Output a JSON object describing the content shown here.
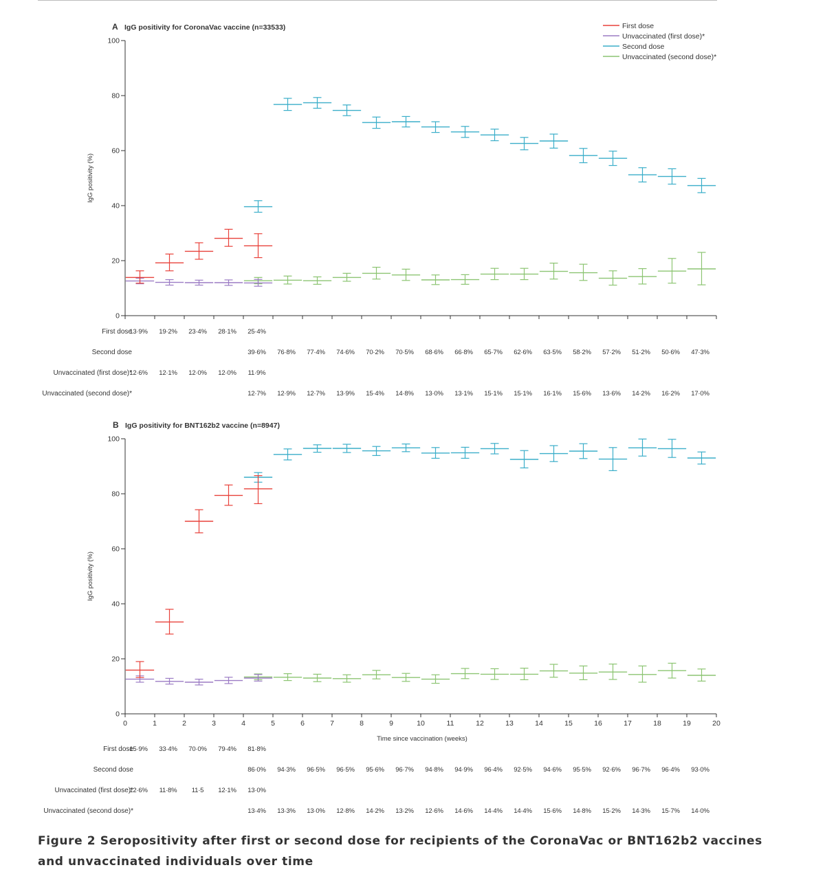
{
  "caption": {
    "line1": "Figure 2 Seropositivity after first or second dose for recipients of the CoronaVac or BNT162b2 vaccines",
    "line2": "and unvaccinated individuals over time"
  },
  "colors": {
    "first_dose": "#e8413a",
    "unvacc_first": "#9b7bc4",
    "second_dose": "#3aaec9",
    "unvacc_second": "#8cc472"
  },
  "legend": {
    "first": "First dose",
    "unvacc_first": "Unvaccinated (first dose)*",
    "second": "Second dose",
    "unvacc_second": "Unvaccinated (second dose)*"
  },
  "chart_data": [
    {
      "type": "scatter",
      "panel": "A",
      "title": "IgG positivity for CoronaVac vaccine (n=33533)",
      "ylabel": "IgG positivity (%)",
      "ylim": [
        0,
        100
      ],
      "yticks": [
        "0",
        "20",
        "40",
        "60",
        "80",
        "100"
      ],
      "xlim": [
        0,
        20
      ],
      "xticks": [],
      "xlabel": "",
      "legend_position": "top-right",
      "table_labels": {
        "first": "First dose",
        "second": "Second dose",
        "unvacc_first": "Unvaccinated (first dose)*",
        "unvacc_second": "Unvaccinated (second dose)*"
      },
      "series": [
        {
          "name": "First dose",
          "key": "first",
          "start": 0,
          "values": [
            13.9,
            19.2,
            23.4,
            28.1,
            25.4
          ],
          "ci": [
            [
              11.8,
              16.3
            ],
            [
              16.3,
              22.4
            ],
            [
              20.5,
              26.5
            ],
            [
              25.2,
              31.4
            ],
            [
              21.1,
              29.8
            ]
          ],
          "labels": [
            "13·9%",
            "19·2%",
            "23·4%",
            "28·1%",
            "25·4%"
          ]
        },
        {
          "name": "Unvaccinated (first dose)*",
          "key": "unvacc_first",
          "start": 0,
          "values": [
            12.6,
            12.1,
            12.0,
            12.0,
            11.9
          ],
          "ci": [
            [
              11.6,
              13.6
            ],
            [
              11.1,
              13.1
            ],
            [
              11.1,
              12.9
            ],
            [
              11.0,
              13.0
            ],
            [
              10.7,
              13.2
            ]
          ],
          "labels": [
            "12·6%",
            "12·1%",
            "12·0%",
            "12·0%",
            "11·9%"
          ]
        },
        {
          "name": "Second dose",
          "key": "second",
          "start": 4,
          "values": [
            39.6,
            76.8,
            77.4,
            74.6,
            70.2,
            70.5,
            68.6,
            66.8,
            65.7,
            62.6,
            63.5,
            58.2,
            57.2,
            51.2,
            50.6,
            47.3
          ],
          "ci": [
            [
              37.6,
              41.8
            ],
            [
              74.6,
              79.0
            ],
            [
              75.4,
              79.3
            ],
            [
              72.7,
              76.6
            ],
            [
              68.1,
              72.2
            ],
            [
              68.6,
              72.4
            ],
            [
              66.6,
              70.5
            ],
            [
              64.8,
              68.8
            ],
            [
              63.6,
              67.8
            ],
            [
              60.3,
              64.8
            ],
            [
              60.9,
              66.0
            ],
            [
              55.6,
              60.8
            ],
            [
              54.6,
              59.8
            ],
            [
              48.6,
              53.8
            ],
            [
              47.8,
              53.4
            ],
            [
              44.7,
              49.9
            ]
          ],
          "labels": [
            "39·6%",
            "76·8%",
            "77·4%",
            "74·6%",
            "70·2%",
            "70·5%",
            "68·6%",
            "66·8%",
            "65·7%",
            "62·6%",
            "63·5%",
            "58·2%",
            "57·2%",
            "51·2%",
            "50·6%",
            "47·3%"
          ]
        },
        {
          "name": "Unvaccinated (second dose)*",
          "key": "unvacc_second",
          "start": 4,
          "values": [
            12.7,
            12.9,
            12.7,
            13.9,
            15.4,
            14.8,
            13.0,
            13.1,
            15.1,
            15.1,
            16.1,
            15.6,
            13.6,
            14.2,
            16.2,
            17.0
          ],
          "ci": [
            [
              11.6,
              13.9
            ],
            [
              11.5,
              14.4
            ],
            [
              11.4,
              14.1
            ],
            [
              12.5,
              15.4
            ],
            [
              13.3,
              17.6
            ],
            [
              12.8,
              16.9
            ],
            [
              11.3,
              14.8
            ],
            [
              11.4,
              14.9
            ],
            [
              13.1,
              17.2
            ],
            [
              13.1,
              17.2
            ],
            [
              13.3,
              19.1
            ],
            [
              12.8,
              18.7
            ],
            [
              11.1,
              16.3
            ],
            [
              11.5,
              17.1
            ],
            [
              11.8,
              20.8
            ],
            [
              11.2,
              23.0
            ]
          ],
          "labels": [
            "12·7%",
            "12·9%",
            "12·7%",
            "13·9%",
            "15·4%",
            "14·8%",
            "13·0%",
            "13·1%",
            "15·1%",
            "15·1%",
            "16·1%",
            "15·6%",
            "13·6%",
            "14·2%",
            "16·2%",
            "17·0%"
          ]
        }
      ]
    },
    {
      "type": "scatter",
      "panel": "B",
      "title": "IgG positivity for BNT162b2 vaccine (n=8947)",
      "ylabel": "IgG positivity (%)",
      "ylim": [
        0,
        100
      ],
      "yticks": [
        "0",
        "20",
        "40",
        "60",
        "80",
        "100"
      ],
      "xlim": [
        0,
        20
      ],
      "xticks": [
        "0",
        "1",
        "2",
        "3",
        "4",
        "5",
        "6",
        "7",
        "8",
        "9",
        "10",
        "11",
        "12",
        "13",
        "14",
        "15",
        "16",
        "17",
        "18",
        "19",
        "20"
      ],
      "xlabel": "Time since vaccination (weeks)",
      "table_labels": {
        "first": "First dose",
        "second": "Second dose",
        "unvacc_first": "Unvaccinated (first dose)*",
        "unvacc_second": "Unvaccinated (second dose)*"
      },
      "series": [
        {
          "name": "First dose",
          "key": "first",
          "start": 0,
          "values": [
            15.9,
            33.4,
            70.0,
            79.4,
            81.8
          ],
          "ci": [
            [
              13.2,
              19.0
            ],
            [
              29.0,
              38.0
            ],
            [
              65.8,
              74.2
            ],
            [
              75.8,
              83.2
            ],
            [
              76.4,
              86.6
            ]
          ],
          "labels": [
            "15·9%",
            "33·4%",
            "70·0%",
            "79·4%",
            "81·8%"
          ]
        },
        {
          "name": "Unvaccinated (first dose)*",
          "key": "unvacc_first",
          "start": 0,
          "values": [
            12.6,
            11.8,
            11.5,
            12.1,
            13.0
          ],
          "ci": [
            [
              11.5,
              13.8
            ],
            [
              10.8,
              12.9
            ],
            [
              10.5,
              12.6
            ],
            [
              11.0,
              13.3
            ],
            [
              11.9,
              14.3
            ]
          ],
          "labels": [
            "12·6%",
            "11·8%",
            "11·5",
            "12·1%",
            "13·0%"
          ]
        },
        {
          "name": "Second dose",
          "key": "second",
          "start": 4,
          "values": [
            86.0,
            94.3,
            96.5,
            96.5,
            95.6,
            96.7,
            94.8,
            94.9,
            96.4,
            92.5,
            94.6,
            95.5,
            92.6,
            96.7,
            96.4,
            93.0
          ],
          "ci": [
            [
              84.2,
              87.7
            ],
            [
              92.3,
              96.3
            ],
            [
              95.1,
              97.8
            ],
            [
              95.0,
              98.0
            ],
            [
              93.9,
              97.2
            ],
            [
              95.3,
              98.1
            ],
            [
              92.9,
              96.8
            ],
            [
              92.9,
              96.9
            ],
            [
              94.5,
              98.3
            ],
            [
              89.4,
              95.7
            ],
            [
              91.7,
              97.5
            ],
            [
              92.8,
              98.2
            ],
            [
              88.4,
              96.8
            ],
            [
              93.7,
              99.9
            ],
            [
              93.2,
              99.8
            ],
            [
              90.8,
              95.2
            ]
          ],
          "labels": [
            "86·0%",
            "94·3%",
            "96·5%",
            "96·5%",
            "95·6%",
            "96·7%",
            "94·8%",
            "94·9%",
            "96·4%",
            "92·5%",
            "94·6%",
            "95·5%",
            "92·6%",
            "96·7%",
            "96·4%",
            "93·0%"
          ]
        },
        {
          "name": "Unvaccinated (second dose)*",
          "key": "unvacc_second",
          "start": 4,
          "values": [
            13.4,
            13.3,
            13.0,
            12.8,
            14.2,
            13.2,
            12.6,
            14.6,
            14.4,
            14.4,
            15.6,
            14.8,
            15.2,
            14.3,
            15.7,
            14.0
          ],
          "ci": [
            [
              12.4,
              14.5
            ],
            [
              12.1,
              14.6
            ],
            [
              11.7,
              14.4
            ],
            [
              11.5,
              14.2
            ],
            [
              12.7,
              15.8
            ],
            [
              11.8,
              14.7
            ],
            [
              11.1,
              14.2
            ],
            [
              12.8,
              16.5
            ],
            [
              12.5,
              16.4
            ],
            [
              12.4,
              16.6
            ],
            [
              13.3,
              18.0
            ],
            [
              12.4,
              17.4
            ],
            [
              12.5,
              18.1
            ],
            [
              11.5,
              17.4
            ],
            [
              13.0,
              18.4
            ],
            [
              11.9,
              16.3
            ]
          ],
          "labels": [
            "13·4%",
            "13·3%",
            "13·0%",
            "12·8%",
            "14·2%",
            "13·2%",
            "12·6%",
            "14·6%",
            "14·4%",
            "14·4%",
            "15·6%",
            "14·8%",
            "15·2%",
            "14·3%",
            "15·7%",
            "14·0%"
          ]
        }
      ]
    }
  ]
}
